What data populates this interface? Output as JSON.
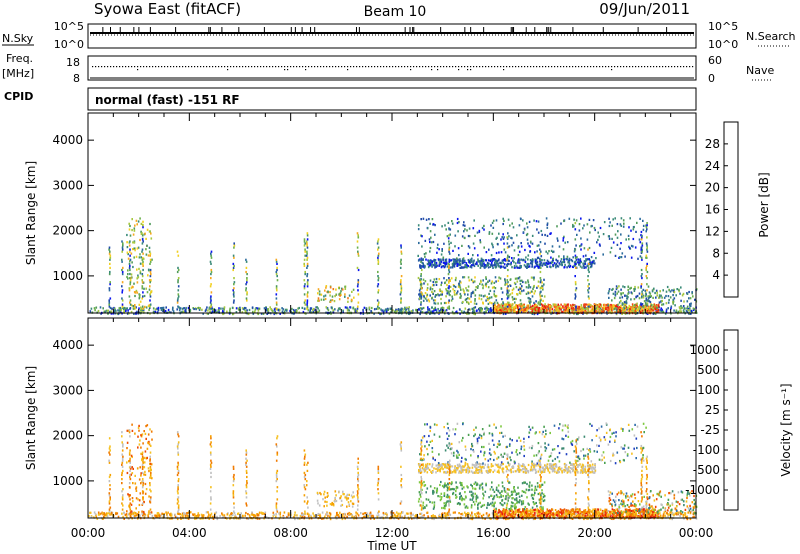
{
  "header": {
    "station": "Syowa East (fitACF)",
    "beam": "Beam 10",
    "date": "09/Jun/2011"
  },
  "status_panel": {
    "nsky_label": "N.Sky",
    "nsky_ticks": [
      "10^5",
      "10^0"
    ],
    "nsearch_label": "N.Search",
    "nsearch_ticks": [
      "10^5",
      "10^0"
    ],
    "freq_label": "Freq.",
    "freq_unit": "[MHz]",
    "freq_ticks": [
      "18",
      "8"
    ],
    "nave_label": "Nave",
    "nave_ticks": [
      "60",
      "0"
    ],
    "cpid_label": "CPID",
    "cpid_value": "normal (fast) -151 RF"
  },
  "chart_data": [
    {
      "type": "heatmap",
      "name": "power",
      "ylabel": "Slant Range [km]",
      "xlabel": "Time UT",
      "x_ticks": [
        "00:00",
        "04:00",
        "08:00",
        "12:00",
        "16:00",
        "20:00",
        "00:00"
      ],
      "xlim_hours": [
        0,
        24
      ],
      "y_ticks": [
        "1000",
        "2000",
        "3000",
        "4000"
      ],
      "ylim_km": [
        180,
        4600
      ],
      "colorbar": {
        "label": "Power [dB]",
        "tick_labels": [
          "4",
          "8",
          "12",
          "16",
          "20",
          "24",
          "28"
        ],
        "range": [
          0,
          30
        ],
        "colors": [
          "#0a14f0",
          "#1e4aa8",
          "#2b6b9c",
          "#3a8a78",
          "#4f9a5a",
          "#6cb04c",
          "#a6c840",
          "#f2d020",
          "#f6a820",
          "#f27a18",
          "#ee4a10",
          "#e81a10"
        ]
      }
    },
    {
      "type": "heatmap",
      "name": "velocity",
      "ylabel": "Slant Range [km]",
      "xlabel": "Time UT",
      "x_ticks": [
        "00:00",
        "04:00",
        "08:00",
        "12:00",
        "16:00",
        "20:00",
        "00:00"
      ],
      "xlim_hours": [
        0,
        24
      ],
      "y_ticks": [
        "1000",
        "2000",
        "3000",
        "4000"
      ],
      "ylim_km": [
        180,
        4600
      ],
      "colorbar": {
        "label": "Velocity [m s⁻¹]",
        "tick_labels": [
          "1000",
          "500",
          "100",
          "25",
          "-25",
          "-100",
          "-500",
          "-1000"
        ],
        "range": [
          -1000,
          1000
        ],
        "colors": [
          "#2040c0",
          "#2a6aa8",
          "#3a8a70",
          "#4aa050",
          "#7ec840",
          "#c0c0c0",
          "#f6c020",
          "#f6a000",
          "#f07a00",
          "#ee4a00",
          "#e81a10"
        ]
      }
    }
  ]
}
